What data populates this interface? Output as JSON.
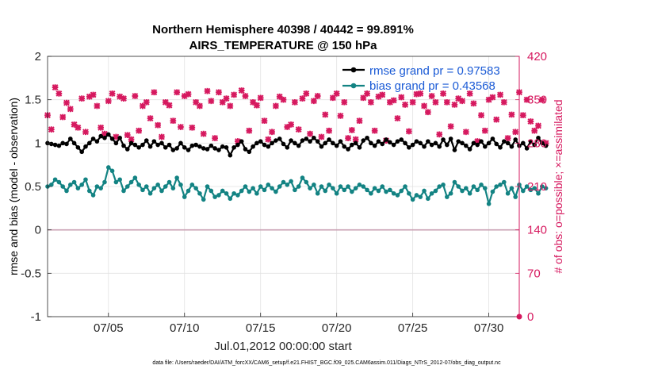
{
  "chart_data": {
    "type": "line",
    "title_line1": "Northern Hemisphere 40398 / 40442 = 99.891%",
    "title_line2": "AIRS_TEMPERATURE @ 150 hPa",
    "ylabel_left": "rmse and bias (model - observation)",
    "ylabel_right": "# of obs: o=possible; ×=assimilated",
    "xlabel": "Jul.01,2012 00:00:00 start",
    "footnote": "data file: /Users/raeder/DAI/ATM_forcXX/CAM6_setup/f.e21.FHIST_BGC.f09_025.CAM6assim.011/Diags_NTrS_2012-07/obs_diag_output.nc",
    "xlim": [
      1,
      32
    ],
    "ylim_left": [
      -1,
      2
    ],
    "ylim_right": [
      0,
      420
    ],
    "x_ticks": [
      5,
      10,
      15,
      20,
      25,
      30
    ],
    "x_tick_labels": [
      "07/05",
      "07/10",
      "07/15",
      "07/20",
      "07/25",
      "07/30"
    ],
    "y_ticks_left": [
      -1,
      -0.5,
      0,
      0.5,
      1,
      1.5,
      2
    ],
    "y_tick_labels_left": [
      "-1",
      "-0.5",
      "0",
      "0.5",
      "1",
      "1.5",
      "2"
    ],
    "y_ticks_right": [
      0,
      70,
      140,
      210,
      280,
      350,
      420
    ],
    "y_tick_labels_right": [
      "0",
      "70",
      "140",
      "210",
      "280",
      "350",
      "420"
    ],
    "grid": true,
    "legend_position": "top-right",
    "series": [
      {
        "name": "rmse",
        "legend_label": "rmse grand pr = 0.97583",
        "color": "#000000",
        "axis": "left",
        "x_start": 1.0,
        "x_step": 0.25,
        "values": [
          1.0,
          0.99,
          0.98,
          0.97,
          1.0,
          0.99,
          1.05,
          1.0,
          0.95,
          0.9,
          0.96,
          1.0,
          1.05,
          1.02,
          1.08,
          1.06,
          1.1,
          1.05,
          1.0,
          1.06,
          0.97,
          0.93,
          1.0,
          0.98,
          0.95,
          0.98,
          1.03,
          0.96,
          1.02,
          0.98,
          1.0,
          0.95,
          0.98,
          0.92,
          0.94,
          1.0,
          0.95,
          0.92,
          0.97,
          0.98,
          0.96,
          0.94,
          0.93,
          0.97,
          0.94,
          0.92,
          0.96,
          0.95,
          0.86,
          0.95,
          0.98,
          1.02,
          0.93,
          0.9,
          0.96,
          1.0,
          1.02,
          0.98,
          0.96,
          1.0,
          1.03,
          1.05,
          0.99,
          0.95,
          1.03,
          1.0,
          0.97,
          1.03,
          1.05,
          1.02,
          1.06,
          1.02,
          0.96,
          1.0,
          1.04,
          1.0,
          0.97,
          1.02,
          0.96,
          0.93,
          0.98,
          1.0,
          0.95,
          1.03,
          1.06,
          1.0,
          0.97,
          1.02,
          0.99,
          1.04,
          1.01,
          0.98,
          1.02,
          1.04,
          1.0,
          0.95,
          0.98,
          1.02,
          1.0,
          0.96,
          1.02,
          0.98,
          1.0,
          0.96,
          1.04,
          0.98,
          1.05,
          0.92,
          1.02,
          1.0,
          0.97,
          0.93,
          1.0,
          0.98,
          1.02,
          0.96,
          1.0,
          1.05,
          0.99,
          0.95,
          1.02,
          1.0,
          0.96,
          1.04,
          0.97,
          1.0,
          0.94,
          1.02,
          0.98,
          1.06,
          1.0,
          0.97
        ]
      },
      {
        "name": "bias",
        "legend_label": "bias grand pr = 0.43568",
        "color": "#138383",
        "axis": "left",
        "x_start": 1.0,
        "x_step": 0.25,
        "values": [
          0.5,
          0.52,
          0.58,
          0.55,
          0.5,
          0.45,
          0.52,
          0.55,
          0.48,
          0.52,
          0.58,
          0.45,
          0.4,
          0.5,
          0.48,
          0.55,
          0.72,
          0.68,
          0.55,
          0.58,
          0.45,
          0.5,
          0.55,
          0.6,
          0.52,
          0.46,
          0.5,
          0.42,
          0.48,
          0.52,
          0.45,
          0.5,
          0.55,
          0.48,
          0.6,
          0.52,
          0.38,
          0.45,
          0.52,
          0.48,
          0.42,
          0.35,
          0.5,
          0.45,
          0.38,
          0.4,
          0.45,
          0.42,
          0.36,
          0.42,
          0.4,
          0.45,
          0.5,
          0.44,
          0.48,
          0.42,
          0.5,
          0.46,
          0.52,
          0.48,
          0.44,
          0.5,
          0.55,
          0.52,
          0.56,
          0.46,
          0.5,
          0.6,
          0.55,
          0.48,
          0.52,
          0.42,
          0.5,
          0.45,
          0.52,
          0.48,
          0.42,
          0.5,
          0.46,
          0.5,
          0.44,
          0.48,
          0.52,
          0.5,
          0.46,
          0.42,
          0.48,
          0.45,
          0.5,
          0.44,
          0.46,
          0.42,
          0.4,
          0.45,
          0.5,
          0.42,
          0.35,
          0.4,
          0.38,
          0.45,
          0.36,
          0.42,
          0.45,
          0.5,
          0.52,
          0.38,
          0.42,
          0.55,
          0.5,
          0.45,
          0.48,
          0.42,
          0.5,
          0.46,
          0.52,
          0.48,
          0.3,
          0.44,
          0.5,
          0.52,
          0.55,
          0.42,
          0.48,
          0.38,
          0.52,
          0.45,
          0.5,
          0.46,
          0.48,
          0.42,
          0.5,
          0.48
        ]
      },
      {
        "name": "obs_assimilated",
        "color": "#d6195f",
        "axis": "right",
        "x_start": 1.0,
        "x_step": 0.25,
        "values": [
          325,
          302,
          370,
          360,
          322,
          345,
          335,
          310,
          305,
          352,
          298,
          355,
          358,
          340,
          305,
          295,
          348,
          360,
          290,
          355,
          352,
          293,
          286,
          356,
          300,
          340,
          346,
          320,
          362,
          309,
          290,
          346,
          341,
          316,
          362,
          306,
          356,
          359,
          305,
          346,
          340,
          295,
          364,
          348,
          288,
          362,
          346,
          352,
          340,
          358,
          283,
          365,
          356,
          300,
          346,
          341,
          353,
          316,
          286,
          298,
          340,
          355,
          350,
          306,
          310,
          346,
          302,
          352,
          360,
          295,
          348,
          356,
          290,
          326,
          300,
          353,
          360,
          324,
          346,
          288,
          301,
          286,
          316,
          353,
          360,
          346,
          300,
          355,
          358,
          284,
          346,
          349,
          320,
          354,
          342,
          299,
          346,
          359,
          360,
          340,
          330,
          356,
          346,
          294,
          360,
          346,
          307,
          342,
          352,
          348,
          298,
          360,
          344,
          283,
          325,
          300,
          350,
          354,
          318,
          358,
          346,
          288,
          326,
          298,
          362,
          325,
          350,
          315,
          300,
          308,
          350,
          280
        ]
      }
    ]
  }
}
